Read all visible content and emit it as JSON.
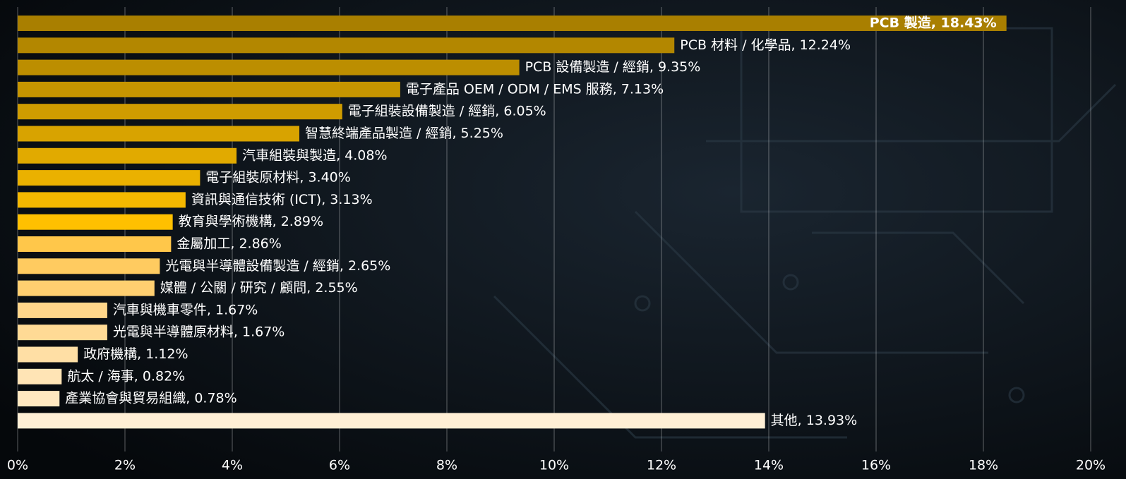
{
  "chart_data": {
    "type": "hbar",
    "values": [
      18.43,
      12.24,
      9.35,
      7.13,
      6.05,
      5.25,
      4.08,
      3.4,
      3.13,
      2.89,
      2.86,
      2.65,
      2.55,
      1.67,
      1.67,
      1.12,
      0.82,
      0.78,
      13.93
    ],
    "value_labels": [
      "PCB 製造, 18.43%",
      "PCB 材料 / 化學品, 12.24%",
      "PCB 設備製造 / 經銷, 9.35%",
      "電子產品 OEM / ODM / EMS 服務, 7.13%",
      "電子組裝設備製造 / 經銷, 6.05%",
      "智慧終端產品製造 / 經銷, 5.25%",
      "汽車組裝與製造, 4.08%",
      "電子組裝原材料, 3.40%",
      "資訊與通信技術 (ICT), 3.13%",
      "教育與學術機構, 2.89%",
      "金屬加工, 2.86%",
      "光電與半導體設備製造 / 經銷, 2.65%",
      "媒體 / 公關 / 研究 / 顧問, 2.55%",
      "汽車與機車零件, 1.67%",
      "光電與半導體原材料, 1.67%",
      "政府機構, 1.12%",
      "航太 / 海事, 0.82%",
      "產業協會與貿易組織, 0.78%",
      "其他, 13.93%"
    ],
    "colors": [
      "#a97f00",
      "#b38700",
      "#bc8e00",
      "#c69500",
      "#cf9c00",
      "#d8a300",
      "#e1aa00",
      "#eab100",
      "#f4b800",
      "#ffc000",
      "#ffc74a",
      "#ffcb60",
      "#ffcf70",
      "#ffd68a",
      "#ffda95",
      "#ffdfa5",
      "#ffe4b5",
      "#ffe8c0",
      "#ffefd5"
    ],
    "xlim": [
      0,
      20
    ],
    "xticks": [
      {
        "value": 0,
        "label": "0%"
      },
      {
        "value": 2,
        "label": "2%"
      },
      {
        "value": 4,
        "label": "4%"
      },
      {
        "value": 6,
        "label": "6%"
      },
      {
        "value": 8,
        "label": "8%"
      },
      {
        "value": 10,
        "label": "10%"
      },
      {
        "value": 12,
        "label": "12%"
      },
      {
        "value": 14,
        "label": "14%"
      },
      {
        "value": 16,
        "label": "16%"
      },
      {
        "value": 18,
        "label": "18%"
      },
      {
        "value": 20,
        "label": "20%"
      }
    ],
    "grid": true
  }
}
